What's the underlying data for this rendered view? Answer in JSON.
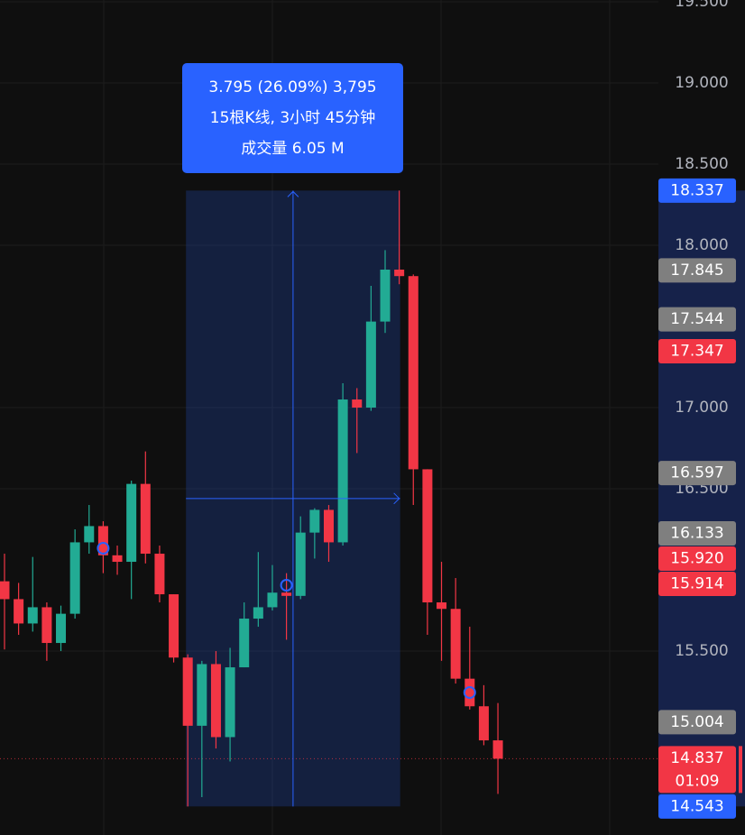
{
  "chart_data": {
    "type": "candlestick",
    "categories": [
      null,
      null,
      null,
      null,
      null,
      null,
      null,
      null,
      null,
      null,
      null,
      null,
      null,
      null,
      null,
      null,
      null,
      null,
      null,
      null,
      null,
      null,
      null,
      null,
      null,
      null,
      null,
      null,
      null,
      null,
      null,
      null,
      null,
      null,
      null,
      null
    ],
    "open": [
      15.93,
      15.82,
      15.67,
      15.77,
      15.55,
      15.73,
      16.17,
      16.27,
      16.09,
      16.05,
      16.53,
      16.1,
      15.85,
      15.46,
      15.04,
      15.42,
      14.97,
      15.4,
      15.7,
      15.77,
      15.86,
      15.84,
      16.23,
      16.37,
      16.17,
      17.05,
      17.0,
      17.53,
      17.85,
      17.81,
      16.62,
      15.8,
      15.76,
      15.33,
      15.16,
      14.95
    ],
    "high": [
      16.1,
      15.92,
      16.08,
      15.8,
      15.78,
      16.25,
      16.4,
      16.3,
      16.15,
      16.55,
      16.73,
      16.15,
      15.85,
      15.48,
      15.44,
      15.5,
      15.52,
      15.8,
      16.11,
      16.03,
      15.98,
      16.33,
      16.38,
      16.4,
      17.15,
      17.12,
      17.75,
      17.97,
      18.337,
      17.82,
      16.62,
      16.05,
      15.95,
      15.65,
      15.29,
      15.18
    ],
    "low": [
      15.51,
      15.6,
      15.62,
      15.44,
      15.5,
      15.7,
      16.1,
      15.98,
      15.97,
      15.82,
      16.04,
      15.8,
      15.43,
      14.543,
      14.6,
      14.9,
      14.82,
      15.4,
      15.65,
      15.75,
      15.57,
      15.82,
      16.07,
      16.05,
      16.15,
      16.72,
      16.98,
      17.46,
      17.76,
      16.4,
      15.6,
      15.44,
      15.3,
      15.14,
      14.92,
      14.62
    ],
    "close": [
      15.82,
      15.67,
      15.77,
      15.55,
      15.73,
      16.17,
      16.27,
      16.09,
      16.05,
      16.53,
      16.1,
      15.85,
      15.46,
      15.04,
      15.42,
      14.97,
      15.4,
      15.7,
      15.77,
      15.86,
      15.84,
      16.23,
      16.37,
      16.17,
      17.05,
      17.0,
      17.53,
      17.85,
      17.81,
      16.62,
      15.8,
      15.76,
      15.33,
      15.16,
      14.95,
      14.837
    ],
    "up_color": "#22ab94",
    "down_color": "#f23645",
    "ylim": [
      14.367,
      19.511
    ],
    "yticks": [
      {
        "value": 19.5,
        "label": "19.500"
      },
      {
        "value": 19.0,
        "label": "19.000"
      },
      {
        "value": 18.5,
        "label": "18.500"
      },
      {
        "value": 18.0,
        "label": "18.000"
      },
      {
        "value": 17.0,
        "label": "17.000"
      },
      {
        "value": 16.5,
        "label": "16.500"
      },
      {
        "value": 15.5,
        "label": "15.500"
      }
    ],
    "grid": true,
    "price_labels": [
      {
        "value": 18.337,
        "label": "18.337",
        "color": "#2962ff"
      },
      {
        "value": 17.845,
        "label": "17.845",
        "color": "#7f7f7f"
      },
      {
        "value": 17.544,
        "label": "17.544",
        "color": "#7f7f7f"
      },
      {
        "value": 17.347,
        "label": "17.347",
        "color": "#f23645"
      },
      {
        "value": 16.597,
        "label": "16.597",
        "color": "#7f7f7f"
      },
      {
        "value": 16.133,
        "label": "16.133",
        "color": "#7f7f7f"
      },
      {
        "value": 15.92,
        "label": "15.920",
        "color": "#f23645"
      },
      {
        "value": 15.914,
        "label": "15.914",
        "color": "#f23645"
      },
      {
        "value": 15.004,
        "label": "15.004",
        "color": "#7f7f7f"
      },
      {
        "value": 14.837,
        "label": "14.837",
        "color": "#f23645",
        "countdown": "01:09"
      },
      {
        "value": 14.543,
        "label": "14.543",
        "color": "#2962ff"
      }
    ],
    "measure": {
      "lines": [
        "3.795 (26.09%) 3,795",
        "15根K线, 3小时 45分钟",
        "成交量 6.05 M"
      ],
      "color": "#2962ff"
    }
  }
}
